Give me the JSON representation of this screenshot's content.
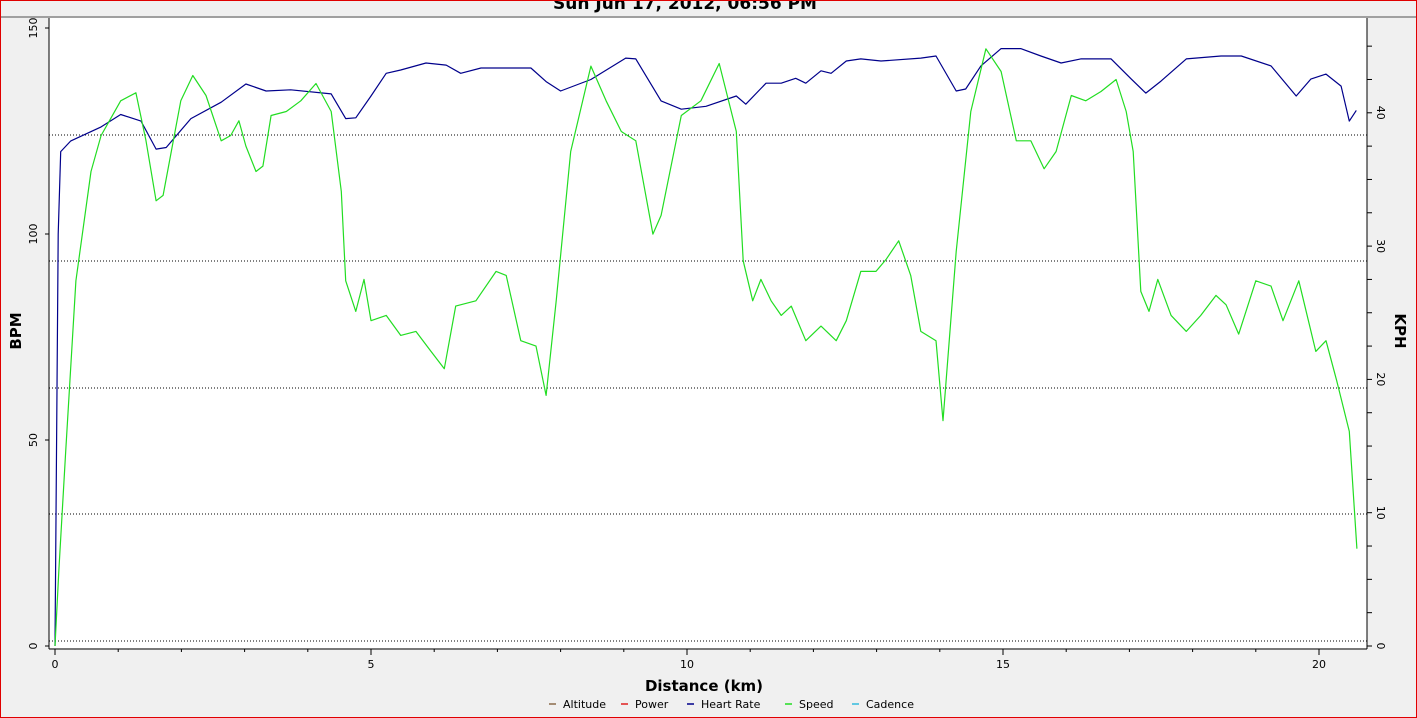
{
  "chart_data": {
    "type": "line",
    "title": "Sun Jun 17, 2012, 06:56 PM",
    "xlabel": "Distance (km)",
    "ylabel": "BPM",
    "y2label": "KPH",
    "xlim": [
      0,
      20.7
    ],
    "ylim": [
      0,
      152
    ],
    "y2lim": [
      0,
      47
    ],
    "xticks": [
      "0",
      "5",
      "10",
      "15",
      "20"
    ],
    "yticks": [
      "0",
      "50",
      "100",
      "150"
    ],
    "y2ticks": [
      "0",
      "10",
      "20",
      "30",
      "40"
    ],
    "grid": true,
    "legend_position": "bottom",
    "legend": [
      {
        "name": "Altitude",
        "color": "#8b6a4a"
      },
      {
        "name": "Power",
        "color": "#e02020"
      },
      {
        "name": "Heart Rate",
        "color": "#00008b"
      },
      {
        "name": "Speed",
        "color": "#22dd22"
      },
      {
        "name": "Cadence",
        "color": "#33bbdd"
      }
    ],
    "series": [
      {
        "name": "Heart Rate",
        "axis": "left",
        "color": "#00008b",
        "x": [
          0,
          0.05,
          0.09,
          0.25,
          0.73,
          1.04,
          1.36,
          1.6,
          1.76,
          2.15,
          2.63,
          3.02,
          3.34,
          3.73,
          4.37,
          4.6,
          4.76,
          5.0,
          5.24,
          5.47,
          5.87,
          6.19,
          6.42,
          6.74,
          7.53,
          7.77,
          8.0,
          8.48,
          9.03,
          9.19,
          9.59,
          9.91,
          10.3,
          10.78,
          10.93,
          11.25,
          11.49,
          11.72,
          11.88,
          12.12,
          12.28,
          12.52,
          12.75,
          13.07,
          13.7,
          13.94,
          14.26,
          14.41,
          14.65,
          14.97,
          15.28,
          15.6,
          15.92,
          16.23,
          16.71,
          17.03,
          17.26,
          17.5,
          17.9,
          18.45,
          18.77,
          19.24,
          19.64,
          19.87,
          20.11,
          20.35,
          20.48,
          20.59
        ],
        "y": [
          0,
          100,
          120,
          122.6,
          126,
          129,
          127.4,
          120.6,
          121,
          128,
          132,
          136.4,
          134.7,
          135,
          134,
          128,
          128.2,
          133.5,
          139,
          139.8,
          141.5,
          141,
          139,
          140.3,
          140.3,
          137,
          134.7,
          137.5,
          142.7,
          142.5,
          132.3,
          130.3,
          131,
          133.5,
          131.5,
          136.6,
          136.6,
          137.8,
          136.6,
          139.6,
          139,
          142,
          142.5,
          142,
          142.7,
          143.2,
          134.7,
          135.2,
          140.8,
          145,
          145,
          143.2,
          141.5,
          142.5,
          142.5,
          137.6,
          134.2,
          137.1,
          142.5,
          143.2,
          143.2,
          140.8,
          133.5,
          137.6,
          138.8,
          135.9,
          127.4,
          130
        ]
      },
      {
        "name": "Speed",
        "axis": "right",
        "color": "#22dd22",
        "x": [
          0,
          0.06,
          0.17,
          0.33,
          0.57,
          0.73,
          1.04,
          1.28,
          1.44,
          1.6,
          1.71,
          1.84,
          1.99,
          2.18,
          2.39,
          2.63,
          2.78,
          2.91,
          3.02,
          3.18,
          3.29,
          3.42,
          3.66,
          3.89,
          4.13,
          4.37,
          4.53,
          4.6,
          4.76,
          4.89,
          5.0,
          5.24,
          5.47,
          5.71,
          5.95,
          6.16,
          6.34,
          6.66,
          6.98,
          7.14,
          7.37,
          7.61,
          7.77,
          7.93,
          8.16,
          8.48,
          8.72,
          8.96,
          9.19,
          9.46,
          9.59,
          9.91,
          10.22,
          10.51,
          10.78,
          10.89,
          11.04,
          11.17,
          11.33,
          11.49,
          11.65,
          11.88,
          12.12,
          12.36,
          12.52,
          12.75,
          12.99,
          13.15,
          13.35,
          13.54,
          13.7,
          13.94,
          14.05,
          14.26,
          14.49,
          14.73,
          14.97,
          15.21,
          15.44,
          15.65,
          15.84,
          16.08,
          16.31,
          16.55,
          16.79,
          16.95,
          17.06,
          17.18,
          17.31,
          17.45,
          17.66,
          17.9,
          18.13,
          18.37,
          18.53,
          18.73,
          19.0,
          19.24,
          19.43,
          19.68,
          19.95,
          20.11,
          20.28,
          20.48,
          20.6
        ],
        "y": [
          0,
          5.6,
          14.6,
          27.4,
          35.6,
          38.3,
          40.9,
          41.5,
          37.9,
          33.4,
          33.8,
          37.1,
          40.9,
          42.8,
          41.3,
          37.9,
          38.3,
          39.4,
          37.5,
          35.6,
          36,
          39.8,
          40.1,
          40.9,
          42.2,
          40.1,
          34.1,
          27.4,
          25.1,
          27.5,
          24.4,
          24.8,
          23.3,
          23.6,
          22.1,
          20.8,
          25.5,
          25.9,
          28.1,
          27.8,
          22.9,
          22.5,
          18.8,
          25.9,
          37.1,
          43.5,
          40.9,
          38.6,
          37.9,
          30.9,
          32.3,
          39.8,
          40.9,
          43.7,
          38.6,
          28.9,
          25.9,
          27.5,
          25.9,
          24.8,
          25.5,
          22.9,
          24,
          22.9,
          24.4,
          28.1,
          28.1,
          29,
          30.4,
          27.8,
          23.6,
          22.9,
          16.9,
          29.6,
          40.1,
          44.8,
          43.1,
          37.9,
          37.9,
          35.8,
          37.1,
          41.3,
          40.9,
          41.6,
          42.5,
          40.1,
          37.1,
          26.6,
          25.1,
          27.5,
          24.8,
          23.6,
          24.8,
          26.3,
          25.6,
          23.4,
          27.4,
          27.0,
          24.4,
          27.4,
          22.1,
          22.9,
          19.9,
          16.1,
          7.3
        ]
      }
    ]
  }
}
